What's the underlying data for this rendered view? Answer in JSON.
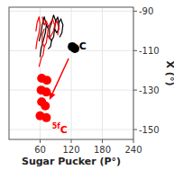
{
  "chart_data": {
    "type": "scatter",
    "xlabel": "Sugar Pucker (P°)",
    "ylabel": "X (°)",
    "xlim": [
      0,
      240
    ],
    "ylim": [
      -155,
      -88
    ],
    "xticks": [
      60,
      120,
      180,
      240
    ],
    "yticks": [
      -150,
      -130,
      -110,
      -90
    ],
    "series": [
      {
        "type": "scatter",
        "color": "#000000",
        "x": [
          122,
          127
        ],
        "values": [
          -108,
          -109
        ]
      },
      {
        "type": "scatter",
        "color": "#ff0000",
        "x": [
          63,
          73,
          62,
          72,
          63,
          70,
          60,
          72
        ],
        "values": [
          -124,
          -125,
          -130,
          -131,
          -136,
          -138,
          -143,
          -144
        ]
      },
      {
        "type": "line",
        "color": "#000000",
        "x": [
          82,
          86,
          90,
          94,
          96,
          100
        ],
        "values": [
          -96,
          -92,
          -95,
          -93,
          -96,
          -94
        ]
      },
      {
        "type": "line",
        "color": "#000000",
        "x": [
          90,
          88,
          92,
          96,
          96
        ],
        "values": [
          -95,
          -99,
          -101,
          -99,
          -96
        ]
      },
      {
        "type": "line",
        "color": "#000000",
        "x": [
          88,
          86,
          82,
          78,
          78,
          82
        ],
        "values": [
          -99,
          -103,
          -105,
          -103,
          -99,
          -96
        ]
      },
      {
        "type": "line",
        "color": "#000000",
        "x": [
          82,
          80,
          76
        ],
        "values": [
          -105,
          -108,
          -109
        ]
      },
      {
        "type": "line",
        "color": "#000000",
        "x": [
          100,
          104,
          102,
          98
        ],
        "values": [
          -94,
          -97,
          -101,
          -103
        ]
      },
      {
        "type": "line",
        "color": "#000000",
        "x": [
          68,
          72,
          70,
          66,
          62,
          60
        ],
        "values": [
          -93,
          -97,
          -101,
          -105,
          -109,
          -113
        ]
      },
      {
        "type": "line",
        "color": "#000000",
        "x": [
          68,
          64,
          62,
          58
        ],
        "values": [
          -93,
          -97,
          -101,
          -105
        ]
      },
      {
        "type": "line",
        "color": "#000000",
        "x": [
          72,
          76
        ],
        "values": [
          -97,
          -99
        ]
      },
      {
        "type": "line",
        "color": "#ff0000",
        "x": [
          64,
          68,
          72,
          76,
          80,
          84,
          88,
          92
        ],
        "values": [
          -93,
          -97,
          -95,
          -98,
          -96,
          -94,
          -97,
          -95
        ]
      },
      {
        "type": "line",
        "color": "#ff0000",
        "x": [
          76,
          74,
          78,
          82,
          86,
          88
        ],
        "values": [
          -98,
          -102,
          -104,
          -102,
          -100,
          -97
        ]
      },
      {
        "type": "line",
        "color": "#ff0000",
        "x": [
          74,
          72,
          68,
          64,
          64,
          68
        ],
        "values": [
          -102,
          -106,
          -108,
          -106,
          -102,
          -99
        ]
      },
      {
        "type": "line",
        "color": "#ff0000",
        "x": [
          68,
          66,
          62,
          58
        ],
        "values": [
          -108,
          -112,
          -114,
          -118
        ]
      },
      {
        "type": "line",
        "color": "#ff0000",
        "x": [
          92,
          96,
          94
        ],
        "values": [
          -95,
          -98,
          -102
        ]
      },
      {
        "type": "line",
        "color": "#ff0000",
        "x": [
          58,
          60,
          58,
          54,
          52
        ],
        "values": [
          -93,
          -97,
          -101,
          -105,
          -109
        ]
      },
      {
        "type": "line",
        "color": "#ff0000",
        "x": [
          58,
          54,
          52
        ],
        "values": [
          -93,
          -96,
          -100
        ]
      }
    ],
    "annotations": [
      {
        "text": "C",
        "x": 135,
        "y": -108,
        "color": "#000000"
      },
      {
        "superscript": "5f",
        "text": "C",
        "x": 83,
        "y": -147,
        "color": "#ff0000"
      }
    ],
    "arrows": [
      {
        "from": [
          115,
          -114
        ],
        "to": [
          78,
          -135
        ],
        "color": "#ff0000"
      }
    ]
  }
}
